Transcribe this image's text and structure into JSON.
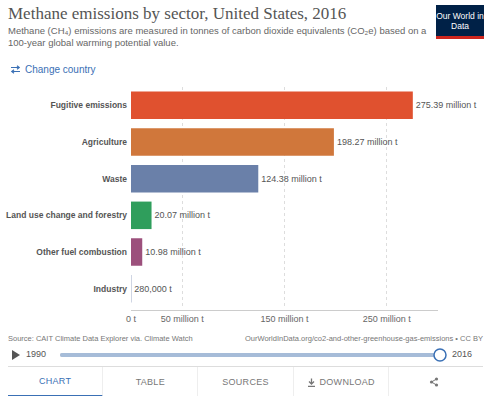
{
  "chart_data": {
    "type": "bar",
    "orientation": "horizontal",
    "title": "Methane emissions by sector, United States, 2016",
    "subtitle": "Methane (CH₄) emissions are measured in tonnes of carbon dioxide equivalents (CO₂e) based on a 100-year global warming potential value.",
    "categories": [
      "Fugitive emissions",
      "Agriculture",
      "Waste",
      "Land use change and forestry",
      "Other fuel combustion",
      "Industry"
    ],
    "values": [
      275390000,
      198270000,
      124380000,
      20070000,
      10980000,
      280000
    ],
    "value_labels": [
      "275.39 million t",
      "198.27 million t",
      "124.38 million t",
      "20.07 million t",
      "10.98 million t",
      "280,000 t"
    ],
    "colors": [
      "#e0512f",
      "#d0773b",
      "#6a80a9",
      "#2f9e5c",
      "#9c507c",
      "#5b6fa0"
    ],
    "xlim": [
      0,
      300000000
    ],
    "xticks": [
      {
        "value": 0,
        "label": "0 t"
      },
      {
        "value": 50000000,
        "label": "50 million t"
      },
      {
        "value": 150000000,
        "label": "150 million t"
      },
      {
        "value": 250000000,
        "label": "250 million t"
      }
    ],
    "grid": true,
    "data_labels": true
  },
  "page": {
    "logo": "Our World in Data",
    "change_country": "Change country",
    "source": "Source: CAIT Climate Data Explorer via. Climate Watch",
    "url": "OurWorldInData.org/co2-and-other-greenhouse-gas-emissions • CC BY",
    "timeline": {
      "start": "1990",
      "end": "2016"
    },
    "tabs": [
      "CHART",
      "TABLE",
      "SOURCES",
      "DOWNLOAD"
    ]
  }
}
